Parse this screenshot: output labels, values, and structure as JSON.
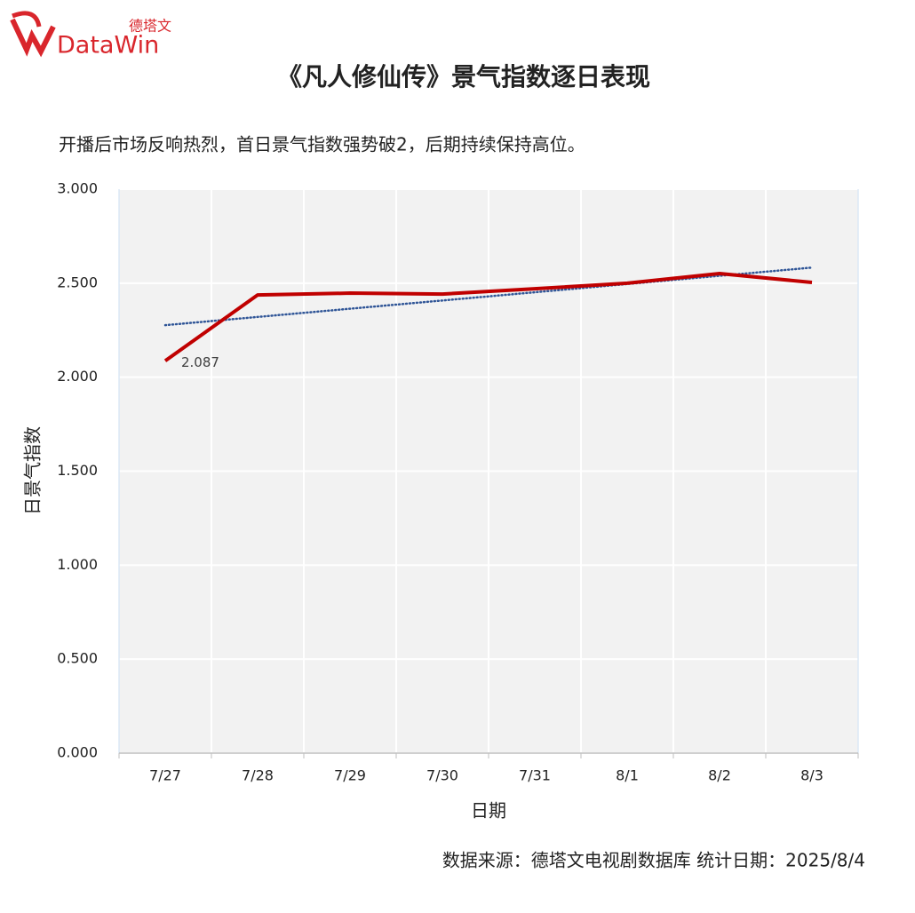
{
  "header": {
    "logo_cn": "德塔文",
    "logo_en": "DataWin"
  },
  "chart_data": {
    "type": "line",
    "title": "《凡人修仙传》景气指数逐日表现",
    "subtitle": "开播后市场反响热烈，首日景气指数强势破2，后期持续保持高位。",
    "xlabel": "日期",
    "ylabel": "日景气指数",
    "source": "数据来源：德塔文电视剧数据库   统计日期：2025/8/4",
    "categories": [
      "7/27",
      "7/28",
      "7/29",
      "7/30",
      "7/31",
      "8/1",
      "8/2",
      "8/3"
    ],
    "values": [
      2.087,
      2.437,
      2.447,
      2.442,
      2.47,
      2.5,
      2.551,
      2.504
    ],
    "value_labels": [
      "2.087",
      null,
      null,
      null,
      null,
      null,
      null,
      null
    ],
    "color": "#c00000",
    "trendline": true,
    "trendline_color": "#2f5597",
    "ylim": [
      0,
      3
    ],
    "yticks": [
      {
        "value": 0,
        "label": "0.000"
      },
      {
        "value": 0.5,
        "label": "0.500"
      },
      {
        "value": 1,
        "label": "1.000"
      },
      {
        "value": 1.5,
        "label": "1.500"
      },
      {
        "value": 2,
        "label": "2.000"
      },
      {
        "value": 2.5,
        "label": "2.500"
      },
      {
        "value": 3,
        "label": "3.000"
      }
    ],
    "grid": true
  }
}
